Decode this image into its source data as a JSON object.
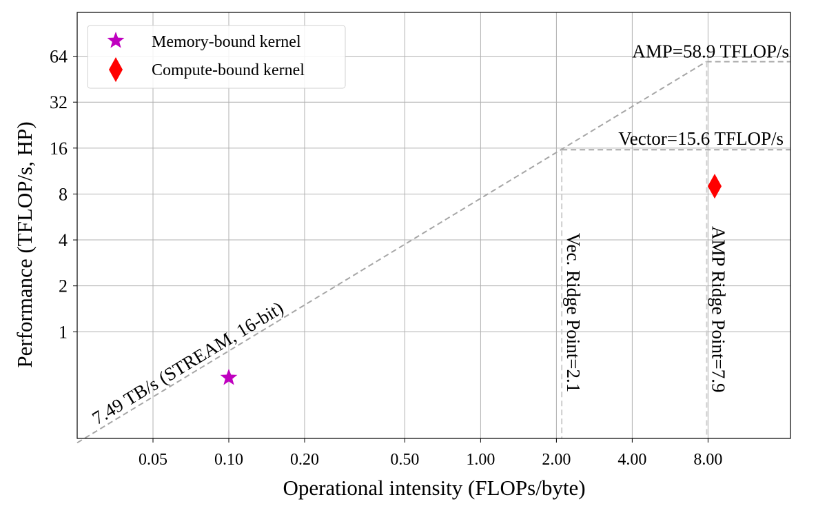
{
  "chart_data": {
    "type": "scatter",
    "title": "",
    "xlabel": "Operational intensity (FLOPs/byte)",
    "ylabel": "Performance (TFLOP/s, HP)",
    "xscale": "log",
    "yscale": "log",
    "xlim": [
      0.025,
      17
    ],
    "ylim": [
      0.2,
      124
    ],
    "xticks": [
      0.05,
      0.1,
      0.2,
      0.5,
      1.0,
      2.0,
      4.0,
      8.0
    ],
    "xtick_labels": [
      "0.05",
      "0.10",
      "0.20",
      "0.50",
      "1.00",
      "2.00",
      "4.00",
      "8.00"
    ],
    "yticks": [
      1,
      2,
      4,
      8,
      16,
      32,
      64
    ],
    "ytick_labels": [
      "1",
      "2",
      "4",
      "8",
      "16",
      "32",
      "64"
    ],
    "grid": true,
    "legend_position": "top-left",
    "series": [
      {
        "name": "Memory-bound kernel",
        "marker": "star",
        "color": "#bf00bf",
        "points": [
          [
            0.1,
            0.5
          ]
        ]
      },
      {
        "name": "Compute-bound kernel",
        "marker": "thin_diamond",
        "color": "#ff0000",
        "points": [
          [
            8.5,
            9.0
          ]
        ]
      }
    ],
    "roofline": {
      "color": "#a6a6a6",
      "bandwidth_slope": 7.49,
      "bandwidth_label": "7.49 TB/s (STREAM, 16-bit)",
      "ceilings": [
        {
          "value": 58.9,
          "label": "AMP=58.9 TFLOP/s"
        },
        {
          "value": 15.6,
          "label": "Vector=15.6 TFLOP/s"
        }
      ],
      "ridge_points": [
        {
          "x": 2.1,
          "label": "Vec. Ridge Point=2.1"
        },
        {
          "x": 7.9,
          "label": "AMP Ridge Point=7.9"
        }
      ]
    }
  }
}
